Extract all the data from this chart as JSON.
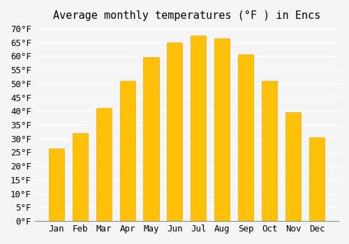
{
  "title": "Average monthly temperatures (°F ) in Encs",
  "months": [
    "Jan",
    "Feb",
    "Mar",
    "Apr",
    "May",
    "Jun",
    "Jul",
    "Aug",
    "Sep",
    "Oct",
    "Nov",
    "Dec"
  ],
  "values": [
    26.5,
    32,
    41,
    51,
    59.5,
    65,
    67.5,
    66.5,
    60.5,
    51,
    39.5,
    30.5
  ],
  "ylim": [
    0,
    70
  ],
  "yticks": [
    0,
    5,
    10,
    15,
    20,
    25,
    30,
    35,
    40,
    45,
    50,
    55,
    60,
    65,
    70
  ],
  "bar_color_main": "#FFC107",
  "bar_color_edge": "#FFA500",
  "background_color": "#f5f5f5",
  "grid_color": "#ffffff",
  "title_fontsize": 11,
  "tick_fontsize": 9,
  "font_family": "monospace"
}
